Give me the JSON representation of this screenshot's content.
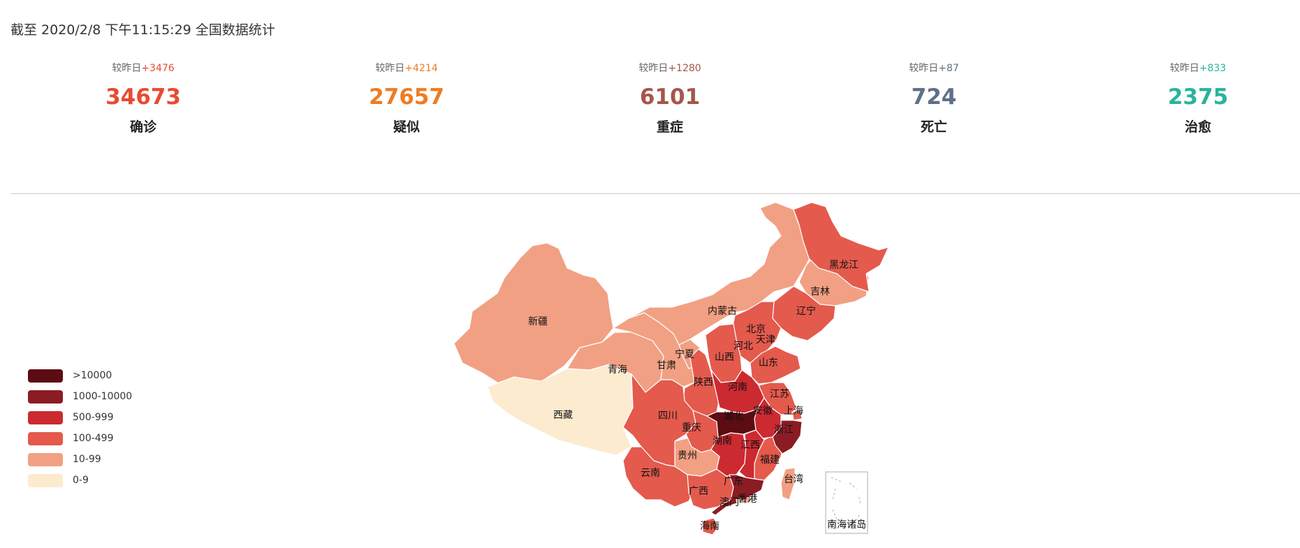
{
  "header": {
    "text": "截至 2020/2/8 下午11:15:29 全国数据统计"
  },
  "stats": [
    {
      "key": "confirmed",
      "delta_prefix": "较昨日",
      "delta": "+3476",
      "value": "34673",
      "label": "确诊",
      "color": "#e84a32"
    },
    {
      "key": "suspected",
      "delta_prefix": "较昨日",
      "delta": "+4214",
      "value": "27657",
      "label": "疑似",
      "color": "#ee7c23"
    },
    {
      "key": "severe",
      "delta_prefix": "较昨日",
      "delta": "+1280",
      "value": "6101",
      "label": "重症",
      "color": "#a4574a"
    },
    {
      "key": "dead",
      "delta_prefix": "较昨日",
      "delta": "+87",
      "value": "724",
      "label": "死亡",
      "color": "#5f6f87"
    },
    {
      "key": "cured",
      "delta_prefix": "较昨日",
      "delta": "+833",
      "value": "2375",
      "label": "治愈",
      "color": "#29b49a"
    }
  ],
  "legend": [
    {
      "label": ">10000",
      "color": "#5c0c13"
    },
    {
      "label": "1000-10000",
      "color": "#8b1c24"
    },
    {
      "label": "500-999",
      "color": "#cc2a31"
    },
    {
      "label": "100-499",
      "color": "#e45a4d"
    },
    {
      "label": "10-99",
      "color": "#f2a083"
    },
    {
      "label": "0-9",
      "color": "#fdebd0"
    }
  ],
  "map": {
    "provinces": [
      {
        "name": "新疆",
        "level": "10-99"
      },
      {
        "name": "西藏",
        "level": "0-9"
      },
      {
        "name": "青海",
        "level": "10-99"
      },
      {
        "name": "甘肃",
        "level": "10-99"
      },
      {
        "name": "宁夏",
        "level": "10-99"
      },
      {
        "name": "内蒙古",
        "level": "10-99"
      },
      {
        "name": "黑龙江",
        "level": "100-499"
      },
      {
        "name": "吉林",
        "level": "10-99"
      },
      {
        "name": "辽宁",
        "level": "100-499"
      },
      {
        "name": "北京",
        "level": "100-499"
      },
      {
        "name": "天津",
        "level": "10-99"
      },
      {
        "name": "河北",
        "level": "100-499"
      },
      {
        "name": "山西",
        "level": "100-499"
      },
      {
        "name": "山东",
        "level": "100-499"
      },
      {
        "name": "陕西",
        "level": "100-499"
      },
      {
        "name": "河南",
        "level": "500-999"
      },
      {
        "name": "江苏",
        "level": "100-499"
      },
      {
        "name": "上海",
        "level": "100-499"
      },
      {
        "name": "安徽",
        "level": "500-999"
      },
      {
        "name": "湖北",
        "level": ">10000"
      },
      {
        "name": "浙江",
        "level": "1000-10000"
      },
      {
        "name": "四川",
        "level": "100-499"
      },
      {
        "name": "重庆",
        "level": "100-499"
      },
      {
        "name": "湖南",
        "level": "500-999"
      },
      {
        "name": "江西",
        "level": "500-999"
      },
      {
        "name": "福建",
        "level": "100-499"
      },
      {
        "name": "贵州",
        "level": "10-99"
      },
      {
        "name": "云南",
        "level": "100-499"
      },
      {
        "name": "广西",
        "level": "100-499"
      },
      {
        "name": "广东",
        "level": "1000-10000"
      },
      {
        "name": "香港",
        "level": "10-99"
      },
      {
        "name": "澳门",
        "level": "0-9"
      },
      {
        "name": "海南",
        "level": "100-499"
      },
      {
        "name": "台湾",
        "level": "10-99"
      }
    ],
    "inset_label": "南海诸岛"
  }
}
